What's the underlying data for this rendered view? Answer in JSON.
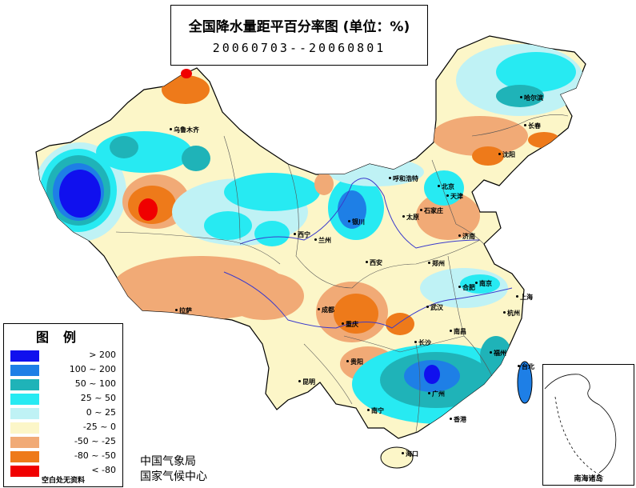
{
  "title": {
    "main": "全国降水量距平百分率图 (单位：%)",
    "period": "20060703--20060801"
  },
  "legend": {
    "title": "图例",
    "items": [
      {
        "label": "> 200",
        "color": "#1010ee"
      },
      {
        "label": "100 ~ 200",
        "color": "#1e7fe6"
      },
      {
        "label": "50 ~ 100",
        "color": "#1fb3b8"
      },
      {
        "label": "25 ~ 50",
        "color": "#27eaf2"
      },
      {
        "label": "0 ~ 25",
        "color": "#bff2f5"
      },
      {
        "label": "-25 ~ 0",
        "color": "#fcf6c8"
      },
      {
        "label": "-50 ~ -25",
        "color": "#f1aa76"
      },
      {
        "label": "-80 ~ -50",
        "color": "#ee7a1a"
      },
      {
        "label": "< -80",
        "color": "#f00000"
      }
    ],
    "note": "空白处无资料"
  },
  "source": {
    "line1": "中国气象局",
    "line2": "国家气候中心"
  },
  "inset_label": "南海诸岛",
  "cities": [
    {
      "name": "乌鲁木齐"
    },
    {
      "name": "拉萨"
    },
    {
      "name": "西宁"
    },
    {
      "name": "兰州"
    },
    {
      "name": "银川"
    },
    {
      "name": "呼和浩特"
    },
    {
      "name": "北京"
    },
    {
      "name": "天津"
    },
    {
      "name": "太原"
    },
    {
      "name": "石家庄"
    },
    {
      "name": "济南"
    },
    {
      "name": "郑州"
    },
    {
      "name": "西安"
    },
    {
      "name": "成都"
    },
    {
      "name": "重庆"
    },
    {
      "name": "贵阳"
    },
    {
      "name": "昆明"
    },
    {
      "name": "南宁"
    },
    {
      "name": "广州"
    },
    {
      "name": "香港"
    },
    {
      "name": "海口"
    },
    {
      "name": "长沙"
    },
    {
      "name": "武汉"
    },
    {
      "name": "南昌"
    },
    {
      "name": "福州"
    },
    {
      "name": "台北"
    },
    {
      "name": "杭州"
    },
    {
      "name": "上海"
    },
    {
      "name": "南京"
    },
    {
      "name": "合肥"
    },
    {
      "name": "沈阳"
    },
    {
      "name": "长春"
    },
    {
      "name": "哈尔滨"
    }
  ]
}
